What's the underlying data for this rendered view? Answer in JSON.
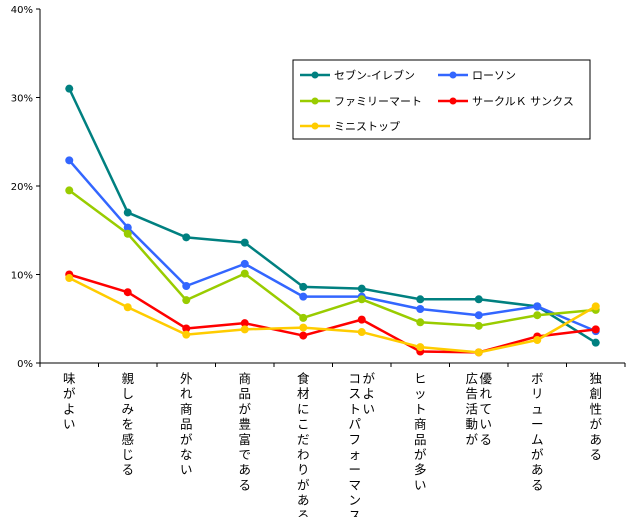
{
  "chart_data": {
    "type": "line",
    "title": "",
    "xlabel": "",
    "ylabel": "",
    "ylim": [
      0,
      40
    ],
    "yticks": [
      "0%",
      "10%",
      "20%",
      "30%",
      "40%"
    ],
    "grid": false,
    "legend_position": "top-right",
    "categories": [
      "味がよい",
      "親しみを感じる",
      "外れ商品がない",
      "商品が豊富である",
      "食材にこだわりがある",
      "コストパフォーマンスがよい",
      "ヒット商品が多い",
      "広告活動が優れている",
      "ボリュームがある",
      "独創性がある"
    ],
    "category_columns": [
      [
        "味がよい"
      ],
      [
        "親しみを感じる"
      ],
      [
        "外れ商品がない"
      ],
      [
        "商品が豊富である"
      ],
      [
        "食材にこだわりがある"
      ],
      [
        "コストパフォーマンス",
        "がよい"
      ],
      [
        "ヒット商品が多い"
      ],
      [
        "広告活動が",
        "優れている"
      ],
      [
        "ボリュームがある"
      ],
      [
        "独創性がある"
      ]
    ],
    "series": [
      {
        "name": "セブン-イレブン",
        "color": "#008080",
        "values": [
          31.0,
          17.0,
          14.2,
          13.6,
          8.6,
          8.4,
          7.2,
          7.2,
          6.4,
          2.3
        ]
      },
      {
        "name": "ローソン",
        "color": "#3366ff",
        "values": [
          22.9,
          15.3,
          8.7,
          11.2,
          7.5,
          7.5,
          6.1,
          5.4,
          6.4,
          3.6
        ]
      },
      {
        "name": "ファミリーマート",
        "color": "#99cc00",
        "values": [
          19.5,
          14.6,
          7.1,
          10.1,
          5.1,
          7.2,
          4.6,
          4.2,
          5.4,
          6.0
        ]
      },
      {
        "name": "サークルＫ サンクス",
        "color": "#ff0000",
        "values": [
          10.0,
          8.0,
          3.9,
          4.5,
          3.1,
          4.9,
          1.3,
          1.2,
          3.0,
          3.8
        ]
      },
      {
        "name": "ミニストップ",
        "color": "#ffcc00",
        "values": [
          9.6,
          6.3,
          3.2,
          3.8,
          4.0,
          3.5,
          1.8,
          1.2,
          2.6,
          6.4
        ]
      }
    ]
  }
}
